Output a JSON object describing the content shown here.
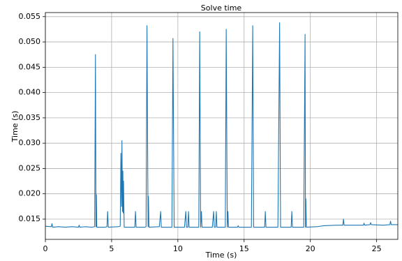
{
  "chart_data": {
    "type": "line",
    "title": "Solve time",
    "x_label": "Time (s)",
    "y_label": "Time (s)",
    "color": "#1f77b4",
    "grid": true,
    "xlim": [
      0,
      26.6
    ],
    "ylim": [
      0.011,
      0.0558
    ],
    "xticks": [
      0,
      5,
      10,
      15,
      20,
      25
    ],
    "yticks": [
      0.015,
      {
        "value": 0.02,
        "label": "0.020"
      },
      0.025,
      {
        "value": 0.03,
        "label": "0.030"
      },
      0.035,
      {
        "value": 0.04,
        "label": "0.040"
      },
      0.045,
      {
        "value": 0.05,
        "label": "0.050"
      },
      0.055
    ],
    "x": [
      0,
      0.45,
      0.5,
      0.55,
      1,
      1.5,
      2,
      2.5,
      2.55,
      2.6,
      3,
      3.5,
      3.72,
      3.78,
      3.82,
      3.85,
      3.88,
      4.5,
      4.65,
      4.7,
      4.75,
      5.5,
      5.65,
      5.7,
      5.75,
      5.78,
      5.82,
      5.85,
      5.88,
      5.9,
      5.95,
      6.5,
      6.75,
      6.8,
      6.85,
      7.5,
      7.6,
      7.67,
      7.75,
      7.78,
      7.82,
      8.6,
      8.7,
      8.75,
      9.55,
      9.63,
      9.72,
      10.5,
      10.6,
      10.65,
      10.75,
      10.8,
      10.85,
      11.58,
      11.65,
      11.72,
      11.78,
      11.82,
      12.6,
      12.7,
      12.75,
      12.85,
      12.9,
      12.95,
      13.58,
      13.65,
      13.73,
      13.78,
      13.82,
      14.5,
      14.55,
      14.6,
      15.55,
      15.65,
      15.72,
      16.55,
      16.6,
      16.65,
      17.55,
      17.68,
      17.75,
      18.55,
      18.6,
      18.65,
      19.5,
      19.6,
      19.63,
      19.66,
      19.7,
      20.5,
      21,
      22,
      22.45,
      22.5,
      22.55,
      24,
      24.05,
      24.1,
      24.5,
      24.55,
      24.6,
      25.5,
      26,
      26.05,
      26.1,
      26.6
    ],
    "values": [
      0.0136,
      0.0135,
      0.0141,
      0.0134,
      0.0135,
      0.0134,
      0.0135,
      0.0134,
      0.0138,
      0.0134,
      0.0135,
      0.0134,
      0.0135,
      0.0475,
      0.0135,
      0.0198,
      0.0134,
      0.0134,
      0.0135,
      0.0165,
      0.0134,
      0.0135,
      0.0136,
      0.028,
      0.0175,
      0.0305,
      0.0165,
      0.0245,
      0.0162,
      0.0225,
      0.0134,
      0.0134,
      0.0134,
      0.0165,
      0.0134,
      0.0134,
      0.0135,
      0.0532,
      0.0135,
      0.0195,
      0.0134,
      0.0135,
      0.0165,
      0.0134,
      0.0134,
      0.0507,
      0.0134,
      0.0134,
      0.0165,
      0.0134,
      0.0134,
      0.0165,
      0.0134,
      0.0134,
      0.052,
      0.0134,
      0.0165,
      0.0134,
      0.0134,
      0.0165,
      0.0134,
      0.0134,
      0.0165,
      0.0134,
      0.0134,
      0.0525,
      0.0134,
      0.0165,
      0.0134,
      0.0134,
      0.0137,
      0.0134,
      0.0134,
      0.0532,
      0.0134,
      0.0134,
      0.0165,
      0.0134,
      0.0134,
      0.0538,
      0.0134,
      0.0134,
      0.0165,
      0.0134,
      0.0134,
      0.0515,
      0.0134,
      0.019,
      0.0134,
      0.0135,
      0.0137,
      0.0138,
      0.0138,
      0.015,
      0.0138,
      0.0138,
      0.0142,
      0.0138,
      0.0139,
      0.0143,
      0.0139,
      0.0138,
      0.0139,
      0.0146,
      0.0139,
      0.0139
    ]
  }
}
